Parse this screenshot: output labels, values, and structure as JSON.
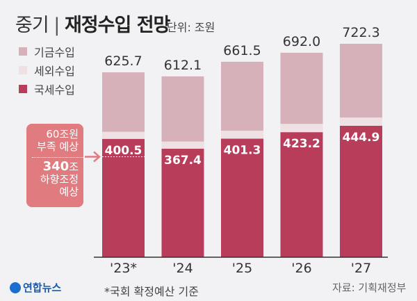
{
  "title": {
    "light": "중기",
    "bold": "재정수입 전망"
  },
  "unit": "단위: 조원",
  "legend": [
    {
      "label": "기금수입",
      "color": "#d7b1ba"
    },
    {
      "label": "세외수입",
      "color": "#efe0e4"
    },
    {
      "label": "국세수입",
      "color": "#b83d5b"
    }
  ],
  "annotation": {
    "line1": "60조원",
    "line2": "부족 예상",
    "amount": "340",
    "amount_unit": "조",
    "line3": "하향조정",
    "line4": "예상"
  },
  "footnote": "*국회 확정예산 기준",
  "source": "자료: 기획재정부",
  "logo": "연합뉴스",
  "chart_data": {
    "type": "bar",
    "stacked": true,
    "title": "중기 재정수입 전망",
    "ylabel": "조원",
    "categories": [
      "'23*",
      "'24",
      "'25",
      "'26",
      "'27"
    ],
    "totals": [
      625.7,
      612.1,
      661.5,
      692.0,
      722.3
    ],
    "total_labels": [
      "625.7",
      "612.1",
      "661.5",
      "692.0",
      "722.3"
    ],
    "series": [
      {
        "name": "국세수입",
        "values": [
          400.5,
          367.4,
          401.3,
          423.2,
          444.9
        ],
        "labels": [
          "400.5",
          "367.4",
          "401.3",
          "423.2",
          "444.9"
        ],
        "color": "#b83d5b"
      },
      {
        "name": "세외수입",
        "values": [
          24,
          24,
          27,
          28,
          28
        ],
        "color": "#efe0e4"
      },
      {
        "name": "기금수입",
        "values": [
          201.2,
          220.7,
          233.2,
          240.8,
          249.4
        ],
        "color": "#d7b1ba"
      }
    ],
    "ylim": [
      0,
      722.3
    ],
    "reference_line": {
      "value": 340,
      "label": "340조 하향조정 예상"
    }
  }
}
